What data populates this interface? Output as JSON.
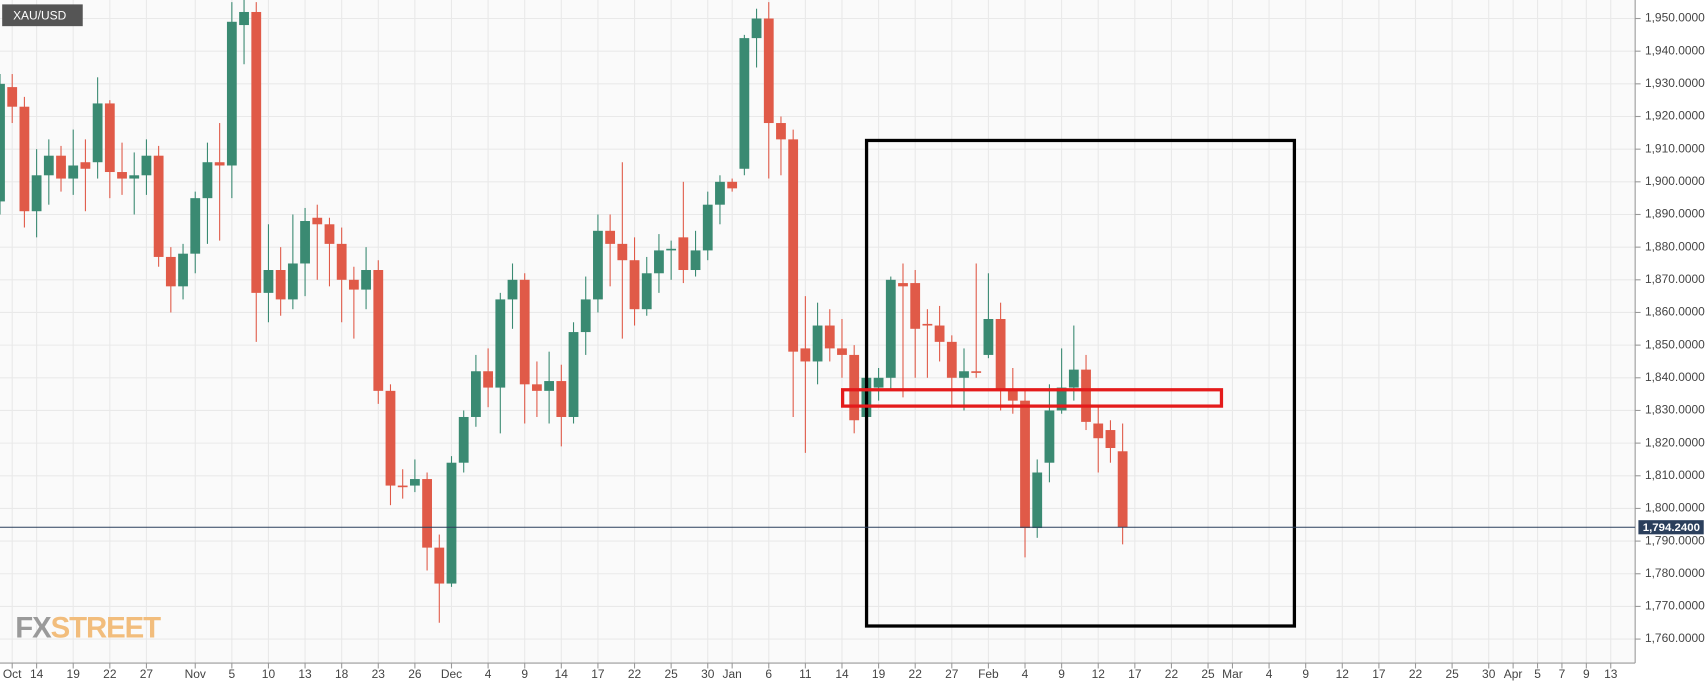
{
  "chart_data": {
    "type": "candlestick",
    "symbol": "XAU/USD",
    "up_color": "#3a8a72",
    "down_color": "#e05a48",
    "grid": true,
    "xlim": [
      -3,
      131
    ],
    "ylim": [
      1752.67,
      1955.66
    ],
    "xticks": [
      {
        "value": -2,
        "label": "Oct"
      },
      {
        "value": 0,
        "label": "14"
      },
      {
        "value": 3,
        "label": "19"
      },
      {
        "value": 6,
        "label": "22"
      },
      {
        "value": 9,
        "label": "27"
      },
      {
        "value": 13,
        "label": "Nov"
      },
      {
        "value": 16,
        "label": "5"
      },
      {
        "value": 19,
        "label": "10"
      },
      {
        "value": 22,
        "label": "13"
      },
      {
        "value": 25,
        "label": "18"
      },
      {
        "value": 28,
        "label": "23"
      },
      {
        "value": 31,
        "label": "26"
      },
      {
        "value": 34,
        "label": "Dec"
      },
      {
        "value": 37,
        "label": "4"
      },
      {
        "value": 40,
        "label": "9"
      },
      {
        "value": 43,
        "label": "14"
      },
      {
        "value": 46,
        "label": "17"
      },
      {
        "value": 49,
        "label": "22"
      },
      {
        "value": 52,
        "label": "25"
      },
      {
        "value": 55,
        "label": "30"
      },
      {
        "value": 57,
        "label": "Jan"
      },
      {
        "value": 60,
        "label": "6"
      },
      {
        "value": 63,
        "label": "11"
      },
      {
        "value": 66,
        "label": "14"
      },
      {
        "value": 69,
        "label": "19"
      },
      {
        "value": 72,
        "label": "22"
      },
      {
        "value": 75,
        "label": "27"
      },
      {
        "value": 78,
        "label": "Feb"
      },
      {
        "value": 81,
        "label": "4"
      },
      {
        "value": 84,
        "label": "9"
      },
      {
        "value": 87,
        "label": "12"
      },
      {
        "value": 90,
        "label": "17"
      },
      {
        "value": 93,
        "label": "22"
      },
      {
        "value": 96,
        "label": "25"
      },
      {
        "value": 98,
        "label": "Mar"
      },
      {
        "value": 101,
        "label": "4"
      },
      {
        "value": 104,
        "label": "9"
      },
      {
        "value": 107,
        "label": "12"
      },
      {
        "value": 110,
        "label": "17"
      },
      {
        "value": 113,
        "label": "22"
      },
      {
        "value": 116,
        "label": "25"
      },
      {
        "value": 119,
        "label": "30"
      },
      {
        "value": 121,
        "label": "Apr"
      },
      {
        "value": 123,
        "label": "5"
      },
      {
        "value": 125,
        "label": "7"
      },
      {
        "value": 127,
        "label": "9"
      },
      {
        "value": 129,
        "label": "13"
      }
    ],
    "yticks": [
      {
        "value": 1760,
        "label": "1,760.0000"
      },
      {
        "value": 1770,
        "label": "1,770.0000"
      },
      {
        "value": 1780,
        "label": "1,780.0000"
      },
      {
        "value": 1790,
        "label": "1,790.0000"
      },
      {
        "value": 1800,
        "label": "1,800.0000"
      },
      {
        "value": 1810,
        "label": "1,810.0000"
      },
      {
        "value": 1820,
        "label": "1,820.0000"
      },
      {
        "value": 1830,
        "label": "1,830.0000"
      },
      {
        "value": 1840,
        "label": "1,840.0000"
      },
      {
        "value": 1850,
        "label": "1,850.0000"
      },
      {
        "value": 1860,
        "label": "1,860.0000"
      },
      {
        "value": 1870,
        "label": "1,870.0000"
      },
      {
        "value": 1880,
        "label": "1,880.0000"
      },
      {
        "value": 1890,
        "label": "1,890.0000"
      },
      {
        "value": 1900,
        "label": "1,900.0000"
      },
      {
        "value": 1910,
        "label": "1,910.0000"
      },
      {
        "value": 1920,
        "label": "1,920.0000"
      },
      {
        "value": 1930,
        "label": "1,930.0000"
      },
      {
        "value": 1940,
        "label": "1,940.0000"
      },
      {
        "value": 1950,
        "label": "1,950.0000"
      }
    ],
    "last_price": {
      "value": 1794.24,
      "label": "1,794.2400"
    },
    "x": [
      -3,
      -2,
      -1,
      0,
      1,
      2,
      3,
      4,
      5,
      6,
      7,
      8,
      9,
      10,
      11,
      12,
      13,
      14,
      15,
      16,
      17,
      18,
      19,
      20,
      21,
      22,
      23,
      24,
      25,
      26,
      27,
      28,
      29,
      30,
      31,
      32,
      33,
      34,
      35,
      36,
      37,
      38,
      39,
      40,
      41,
      42,
      43,
      44,
      45,
      46,
      47,
      48,
      49,
      50,
      51,
      52,
      53,
      54,
      55,
      56,
      57,
      58,
      59,
      60,
      61,
      62,
      63,
      64,
      65,
      66,
      67,
      68,
      69,
      70,
      71,
      72,
      73,
      74,
      75,
      76,
      77,
      78,
      79,
      80,
      81,
      82,
      83,
      84,
      85,
      86,
      87,
      88,
      89
    ],
    "open": [
      1894,
      1929,
      1923,
      1891,
      1902,
      1908,
      1901,
      1906,
      1906,
      1924,
      1903,
      1901,
      1902,
      1908,
      1877,
      1868,
      1878,
      1895,
      1906,
      1905,
      1948,
      1952,
      1866,
      1873,
      1864,
      1875,
      1889,
      1887,
      1881,
      1870,
      1867,
      1873,
      1836,
      1807,
      1807,
      1809,
      1788,
      1777,
      1814,
      1828,
      1842,
      1837,
      1864,
      1870,
      1838,
      1836,
      1839,
      1828,
      1854,
      1864,
      1885,
      1881,
      1876,
      1861,
      1872,
      1879,
      1883,
      1873,
      1879,
      1893,
      1900,
      1904,
      1944,
      1950,
      1918,
      1913,
      1849,
      1845,
      1856,
      1849,
      1847,
      1828,
      1837,
      1840,
      1869,
      1869,
      1856.5,
      1856,
      1851,
      1840,
      1842,
      1847,
      1858,
      1836,
      1833,
      1794,
      1814,
      1830,
      1837,
      1842.5,
      1826,
      1824,
      1817.5
    ],
    "high": [
      1933,
      1933,
      1926,
      1910,
      1913,
      1911,
      1916,
      1913,
      1932,
      1925,
      1912,
      1909,
      1913,
      1911,
      1880,
      1881,
      1897,
      1912,
      1918,
      1955,
      1956,
      1955,
      1887,
      1880,
      1890,
      1892,
      1893,
      1889,
      1886,
      1874,
      1880,
      1876,
      1838,
      1812,
      1815,
      1811,
      1792,
      1816,
      1830,
      1847,
      1849,
      1866,
      1875,
      1872,
      1845,
      1848,
      1844,
      1857,
      1871,
      1890,
      1890,
      1906,
      1883,
      1877,
      1884,
      1882,
      1900,
      1885,
      1897,
      1902,
      1901,
      1945,
      1953,
      1955,
      1920,
      1916,
      1865,
      1863,
      1861,
      1858,
      1850,
      1852,
      1843,
      1871,
      1875,
      1873,
      1861,
      1862,
      1853,
      1849,
      1875,
      1872,
      1863,
      1843,
      1836,
      1815,
      1838,
      1849,
      1856,
      1847,
      1831,
      1827,
      1826
    ],
    "low": [
      1890,
      1918,
      1886,
      1883,
      1893,
      1897,
      1896,
      1891,
      1901,
      1895,
      1896,
      1890,
      1896,
      1874,
      1860,
      1864,
      1872,
      1881,
      1882,
      1895,
      1936,
      1851,
      1857,
      1859,
      1861,
      1865,
      1870,
      1868,
      1857,
      1852,
      1861,
      1832,
      1801,
      1803,
      1805,
      1781,
      1765,
      1776,
      1811,
      1825,
      1831,
      1823,
      1855,
      1826,
      1828,
      1826,
      1819,
      1826,
      1847,
      1860,
      1868,
      1852,
      1856,
      1859,
      1866,
      1870,
      1869,
      1871,
      1876,
      1887,
      1897,
      1902,
      1935,
      1901,
      1902,
      1828,
      1817,
      1838,
      1845,
      1840,
      1823,
      1826,
      1833,
      1836,
      1834,
      1840,
      1840,
      1845,
      1831,
      1830,
      1840,
      1846,
      1830,
      1829,
      1785,
      1791,
      1808,
      1829,
      1833,
      1824,
      1811,
      1814,
      1789
    ],
    "close": [
      1930,
      1923,
      1891,
      1902,
      1908,
      1901,
      1905,
      1904,
      1924,
      1903,
      1901,
      1902,
      1908,
      1877,
      1868,
      1878,
      1895,
      1906,
      1905,
      1949,
      1952,
      1866,
      1873,
      1864,
      1875,
      1888,
      1887,
      1881,
      1870,
      1867,
      1873,
      1836,
      1807,
      1806.5,
      1809,
      1788,
      1777,
      1814,
      1828,
      1842,
      1837,
      1864,
      1870,
      1838,
      1836,
      1839,
      1828,
      1854,
      1864,
      1885,
      1881,
      1876,
      1861,
      1872,
      1879,
      1879.5,
      1873,
      1879,
      1893,
      1900,
      1898,
      1944,
      1950,
      1918,
      1913,
      1848,
      1845,
      1856,
      1849,
      1847,
      1827,
      1840,
      1840,
      1870,
      1868,
      1855,
      1856,
      1851,
      1840,
      1842,
      1841.5,
      1858,
      1836,
      1833,
      1794,
      1811,
      1830,
      1837,
      1842.5,
      1826.5,
      1821.5,
      1818.5,
      1794.24
    ]
  },
  "watermark": {
    "prefix": "FX",
    "suffix": "STREET"
  }
}
